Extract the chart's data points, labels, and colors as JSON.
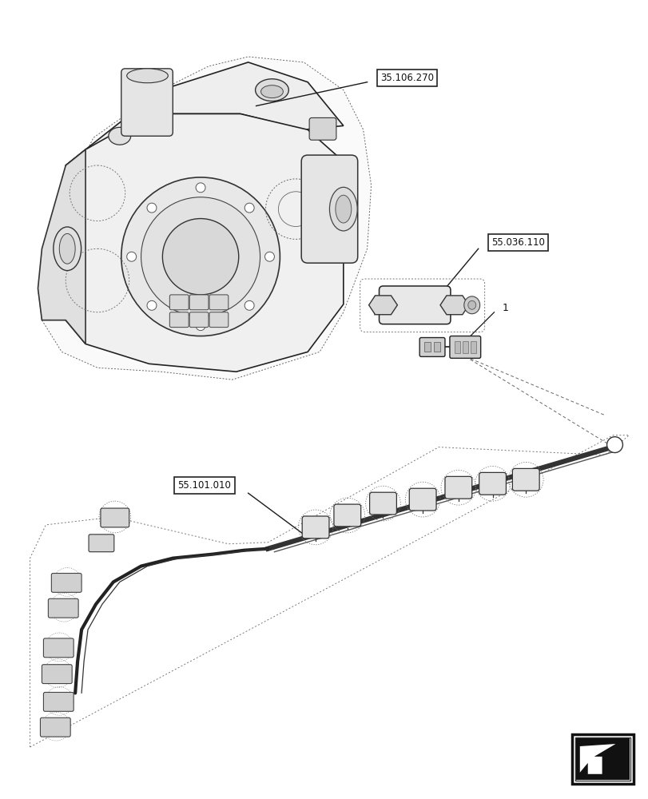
{
  "bg_color": "#ffffff",
  "fig_width": 8.12,
  "fig_height": 10.0,
  "dpi": 100,
  "labels": {
    "label1": "35.106.270",
    "label2": "55.036.110",
    "label3": "55.101.010",
    "item1": "1"
  },
  "lc": "#1a1a1a",
  "lc_gray": "#555555",
  "lc_light": "#888888"
}
